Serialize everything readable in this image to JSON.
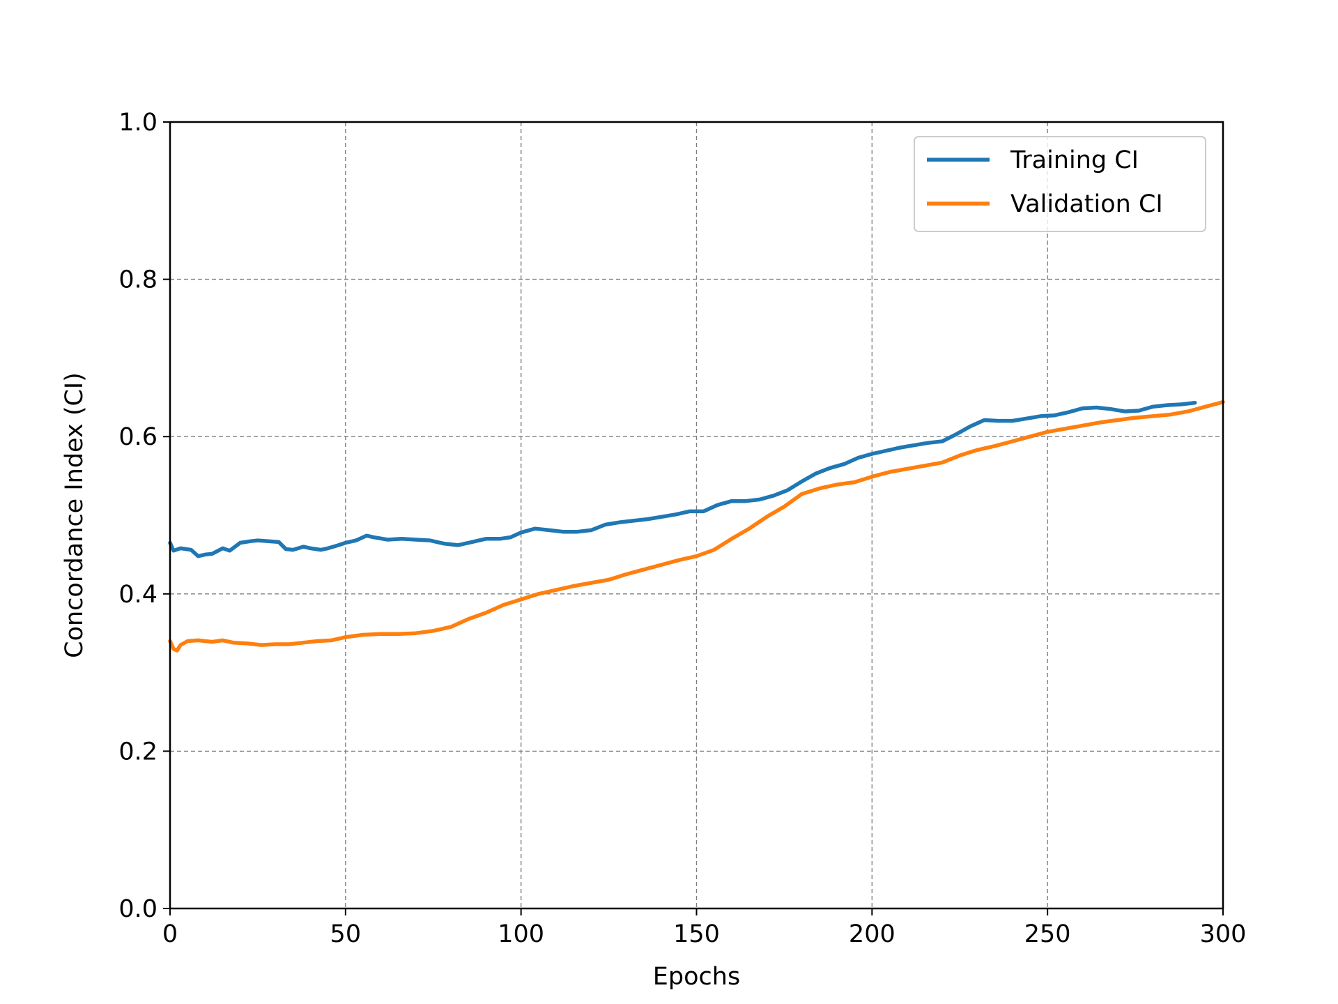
{
  "chart_data": {
    "type": "line",
    "title": "",
    "xlabel": "Epochs",
    "ylabel": "Concordance Index (CI)",
    "xlim": [
      0,
      300
    ],
    "ylim": [
      0,
      1.0
    ],
    "xticks": [
      0,
      50,
      100,
      150,
      200,
      250,
      300
    ],
    "xtick_labels": [
      "0",
      "50",
      "100",
      "150",
      "200",
      "250",
      "300"
    ],
    "yticks": [
      0,
      0.2,
      0.4,
      0.6,
      0.8,
      1.0
    ],
    "ytick_labels": [
      "0.0",
      "0.2",
      "0.4",
      "0.6",
      "0.8",
      "1.0"
    ],
    "grid": true,
    "grid_style": "dashed",
    "legend_position": "top-right",
    "series": [
      {
        "name": "Training CI",
        "color": "#1f77b4",
        "points": [
          [
            0,
            0.465
          ],
          [
            1,
            0.455
          ],
          [
            3,
            0.458
          ],
          [
            6,
            0.456
          ],
          [
            8,
            0.448
          ],
          [
            10,
            0.45
          ],
          [
            12,
            0.451
          ],
          [
            15,
            0.458
          ],
          [
            17,
            0.455
          ],
          [
            20,
            0.465
          ],
          [
            23,
            0.467
          ],
          [
            25,
            0.468
          ],
          [
            28,
            0.467
          ],
          [
            31,
            0.466
          ],
          [
            33,
            0.457
          ],
          [
            35,
            0.456
          ],
          [
            38,
            0.46
          ],
          [
            40,
            0.458
          ],
          [
            43,
            0.456
          ],
          [
            45,
            0.458
          ],
          [
            48,
            0.462
          ],
          [
            50,
            0.465
          ],
          [
            53,
            0.468
          ],
          [
            56,
            0.474
          ],
          [
            58,
            0.472
          ],
          [
            62,
            0.469
          ],
          [
            66,
            0.47
          ],
          [
            70,
            0.469
          ],
          [
            74,
            0.468
          ],
          [
            78,
            0.464
          ],
          [
            82,
            0.462
          ],
          [
            86,
            0.466
          ],
          [
            90,
            0.47
          ],
          [
            94,
            0.47
          ],
          [
            97,
            0.472
          ],
          [
            100,
            0.478
          ],
          [
            104,
            0.483
          ],
          [
            108,
            0.481
          ],
          [
            112,
            0.479
          ],
          [
            116,
            0.479
          ],
          [
            120,
            0.481
          ],
          [
            124,
            0.488
          ],
          [
            128,
            0.491
          ],
          [
            132,
            0.493
          ],
          [
            136,
            0.495
          ],
          [
            140,
            0.498
          ],
          [
            144,
            0.501
          ],
          [
            148,
            0.505
          ],
          [
            152,
            0.505
          ],
          [
            156,
            0.513
          ],
          [
            160,
            0.518
          ],
          [
            164,
            0.518
          ],
          [
            168,
            0.52
          ],
          [
            172,
            0.525
          ],
          [
            176,
            0.532
          ],
          [
            180,
            0.543
          ],
          [
            184,
            0.553
          ],
          [
            188,
            0.56
          ],
          [
            192,
            0.565
          ],
          [
            196,
            0.573
          ],
          [
            200,
            0.578
          ],
          [
            204,
            0.582
          ],
          [
            208,
            0.586
          ],
          [
            212,
            0.589
          ],
          [
            216,
            0.592
          ],
          [
            220,
            0.594
          ],
          [
            224,
            0.603
          ],
          [
            228,
            0.613
          ],
          [
            232,
            0.621
          ],
          [
            236,
            0.62
          ],
          [
            240,
            0.62
          ],
          [
            244,
            0.623
          ],
          [
            248,
            0.626
          ],
          [
            252,
            0.627
          ],
          [
            256,
            0.631
          ],
          [
            260,
            0.636
          ],
          [
            264,
            0.637
          ],
          [
            268,
            0.635
          ],
          [
            272,
            0.632
          ],
          [
            276,
            0.633
          ],
          [
            280,
            0.638
          ],
          [
            284,
            0.64
          ],
          [
            288,
            0.641
          ],
          [
            292,
            0.643
          ]
        ]
      },
      {
        "name": "Validation CI",
        "color": "#ff7f0e",
        "points": [
          [
            0,
            0.34
          ],
          [
            1,
            0.33
          ],
          [
            2,
            0.328
          ],
          [
            3,
            0.335
          ],
          [
            5,
            0.34
          ],
          [
            8,
            0.341
          ],
          [
            12,
            0.339
          ],
          [
            15,
            0.341
          ],
          [
            18,
            0.338
          ],
          [
            22,
            0.337
          ],
          [
            26,
            0.335
          ],
          [
            30,
            0.336
          ],
          [
            34,
            0.336
          ],
          [
            38,
            0.338
          ],
          [
            42,
            0.34
          ],
          [
            46,
            0.341
          ],
          [
            50,
            0.345
          ],
          [
            55,
            0.348
          ],
          [
            60,
            0.349
          ],
          [
            65,
            0.349
          ],
          [
            70,
            0.35
          ],
          [
            75,
            0.353
          ],
          [
            80,
            0.358
          ],
          [
            85,
            0.368
          ],
          [
            90,
            0.376
          ],
          [
            95,
            0.386
          ],
          [
            100,
            0.393
          ],
          [
            105,
            0.4
          ],
          [
            110,
            0.405
          ],
          [
            115,
            0.41
          ],
          [
            120,
            0.414
          ],
          [
            125,
            0.418
          ],
          [
            130,
            0.425
          ],
          [
            135,
            0.431
          ],
          [
            140,
            0.437
          ],
          [
            145,
            0.443
          ],
          [
            150,
            0.448
          ],
          [
            155,
            0.456
          ],
          [
            160,
            0.47
          ],
          [
            165,
            0.483
          ],
          [
            170,
            0.498
          ],
          [
            175,
            0.511
          ],
          [
            180,
            0.527
          ],
          [
            185,
            0.534
          ],
          [
            190,
            0.539
          ],
          [
            195,
            0.542
          ],
          [
            200,
            0.549
          ],
          [
            205,
            0.555
          ],
          [
            210,
            0.559
          ],
          [
            215,
            0.563
          ],
          [
            220,
            0.567
          ],
          [
            225,
            0.576
          ],
          [
            230,
            0.583
          ],
          [
            235,
            0.588
          ],
          [
            240,
            0.594
          ],
          [
            245,
            0.6
          ],
          [
            250,
            0.606
          ],
          [
            255,
            0.61
          ],
          [
            260,
            0.614
          ],
          [
            265,
            0.618
          ],
          [
            270,
            0.621
          ],
          [
            275,
            0.624
          ],
          [
            280,
            0.626
          ],
          [
            285,
            0.628
          ],
          [
            290,
            0.632
          ],
          [
            295,
            0.638
          ],
          [
            300,
            0.644
          ]
        ]
      }
    ]
  }
}
